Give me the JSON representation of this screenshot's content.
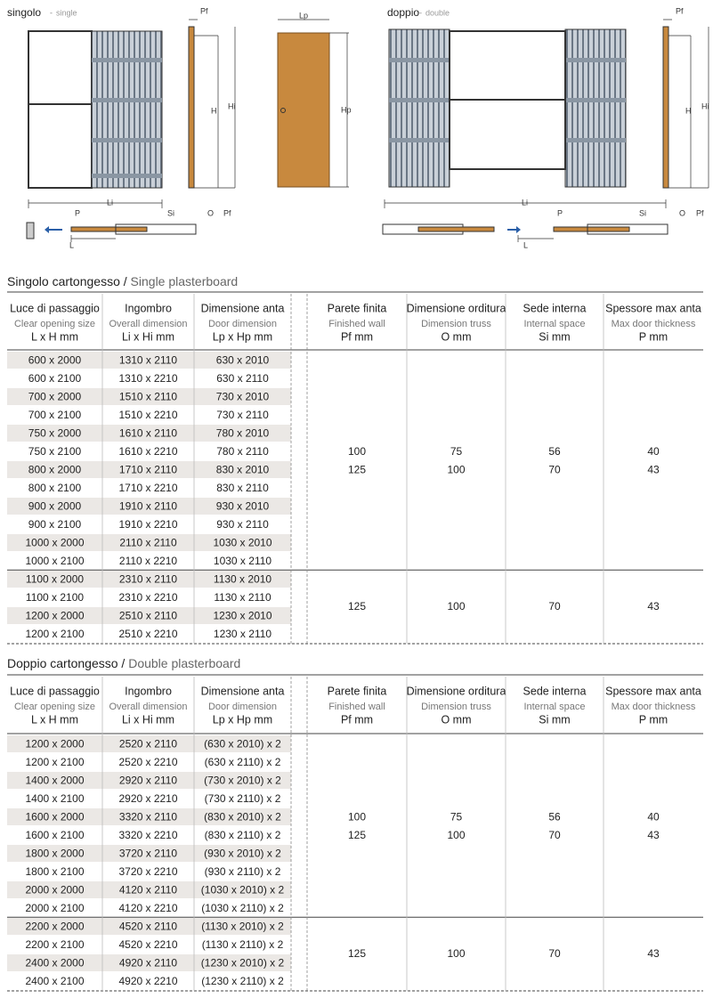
{
  "drawings": {
    "single": {
      "title": "singolo",
      "subtitle": "single",
      "side": {
        "pf": "Pf",
        "h": "H",
        "hi": "Hi"
      },
      "plan": {
        "li": "Li",
        "p": "P",
        "si": "Si",
        "o": "O",
        "pf": "Pf",
        "l": "L"
      }
    },
    "door": {
      "lp": "Lp",
      "hp": "Hp"
    },
    "double": {
      "title": "doppio",
      "subtitle": "double",
      "side": {
        "pf": "Pf",
        "h": "H",
        "hi": "Hi"
      },
      "plan": {
        "li": "Li",
        "p": "P",
        "si": "Si",
        "o": "O",
        "pf": "Pf",
        "l": "L"
      }
    }
  },
  "tables": [
    {
      "title": "Singolo cartongesso",
      "separator": " / ",
      "title_en": "Single plasterboard",
      "headers": [
        [
          "Luce di passaggio",
          "Clear opening size",
          "L x H mm"
        ],
        [
          "Ingombro",
          "Overall dimension",
          "Li x Hi mm"
        ],
        [
          "Dimensione anta",
          "Door dimension",
          "Lp x Hp mm"
        ],
        [
          "Parete finita",
          "Finished wall",
          "Pf mm"
        ],
        [
          "Dimensione orditura",
          "Dimension truss",
          "O mm"
        ],
        [
          "Sede interna",
          "Internal space",
          "Si mm"
        ],
        [
          "Spessore max anta",
          "Max door thickness",
          "P mm"
        ]
      ],
      "rows": [
        [
          "600 x 2000",
          "1310 x 2110",
          "630 x 2010"
        ],
        [
          "600 x 2100",
          "1310 x 2210",
          "630 x 2110"
        ],
        [
          "700 x 2000",
          "1510 x 2110",
          "730 x 2010"
        ],
        [
          "700 x 2100",
          "1510 x 2210",
          "730 x 2110"
        ],
        [
          "750 x 2000",
          "1610 x 2110",
          "780 x 2010"
        ],
        [
          "750 x 2100",
          "1610 x 2210",
          "780 x 2110"
        ],
        [
          "800 x 2000",
          "1710 x 2110",
          "830 x 2010"
        ],
        [
          "800 x 2100",
          "1710 x 2210",
          "830 x 2110"
        ],
        [
          "900 x 2000",
          "1910 x 2110",
          "930 x 2010"
        ],
        [
          "900 x 2100",
          "1910 x 2210",
          "930 x 2110"
        ],
        [
          "1000 x 2000",
          "2110 x 2110",
          "1030 x 2010"
        ],
        [
          "1000 x 2100",
          "2110 x 2210",
          "1030 x 2110"
        ],
        [
          "1100 x 2000",
          "2310 x 2110",
          "1130 x 2010"
        ],
        [
          "1100 x 2100",
          "2310 x 2210",
          "1130 x 2110"
        ],
        [
          "1200 x 2000",
          "2510 x 2110",
          "1230 x 2010"
        ],
        [
          "1200 x 2100",
          "2510 x 2210",
          "1230 x 2110"
        ]
      ],
      "groups": [
        {
          "rows": 12,
          "values": [
            [
              "100",
              "125"
            ],
            [
              "75",
              "100"
            ],
            [
              "56",
              "70"
            ],
            [
              "40",
              "43"
            ]
          ]
        },
        {
          "rows": 4,
          "values": [
            [
              "125"
            ],
            [
              "100"
            ],
            [
              "70"
            ],
            [
              "43"
            ]
          ]
        }
      ]
    },
    {
      "title": "Doppio cartongesso",
      "separator": " / ",
      "title_en": "Double plasterboard",
      "headers": [
        [
          "Luce di passaggio",
          "Clear opening size",
          "L x H mm"
        ],
        [
          "Ingombro",
          "Overall dimension",
          "Li x Hi mm"
        ],
        [
          "Dimensione anta",
          "Door dimension",
          "Lp x Hp mm"
        ],
        [
          "Parete finita",
          "Finished wall",
          "Pf mm"
        ],
        [
          "Dimensione orditura",
          "Dimension truss",
          "O mm"
        ],
        [
          "Sede interna",
          "Internal space",
          "Si mm"
        ],
        [
          "Spessore max anta",
          "Max door thickness",
          "P mm"
        ]
      ],
      "rows": [
        [
          "1200 x 2000",
          "2520 x 2110",
          "(630 x 2010) x 2"
        ],
        [
          "1200 x 2100",
          "2520 x 2210",
          "(630 x 2110) x 2"
        ],
        [
          "1400 x 2000",
          "2920 x 2110",
          "(730 x 2010) x 2"
        ],
        [
          "1400 x 2100",
          "2920 x 2210",
          "(730 x 2110) x 2"
        ],
        [
          "1600 x 2000",
          "3320 x 2110",
          "(830 x 2010) x 2"
        ],
        [
          "1600 x 2100",
          "3320 x 2210",
          "(830 x 2110) x 2"
        ],
        [
          "1800 x 2000",
          "3720 x 2110",
          "(930 x 2010) x 2"
        ],
        [
          "1800 x 2100",
          "3720 x 2210",
          "(930 x 2110) x 2"
        ],
        [
          "2000 x 2000",
          "4120 x 2110",
          "(1030 x 2010) x 2"
        ],
        [
          "2000 x 2100",
          "4120 x 2210",
          "(1030 x 2110) x 2"
        ],
        [
          "2200 x 2000",
          "4520 x 2110",
          "(1130 x 2010) x 2"
        ],
        [
          "2200 x 2100",
          "4520 x 2210",
          "(1130 x 2110) x 2"
        ],
        [
          "2400 x 2000",
          "4920 x 2110",
          "(1230 x 2010) x 2"
        ],
        [
          "2400 x 2100",
          "4920 x 2210",
          "(1230 x 2110) x 2"
        ]
      ],
      "groups": [
        {
          "rows": 10,
          "values": [
            [
              "100",
              "125"
            ],
            [
              "75",
              "100"
            ],
            [
              "56",
              "70"
            ],
            [
              "40",
              "43"
            ]
          ]
        },
        {
          "rows": 4,
          "values": [
            [
              "125"
            ],
            [
              "100"
            ],
            [
              "70"
            ],
            [
              "43"
            ]
          ]
        }
      ]
    }
  ]
}
